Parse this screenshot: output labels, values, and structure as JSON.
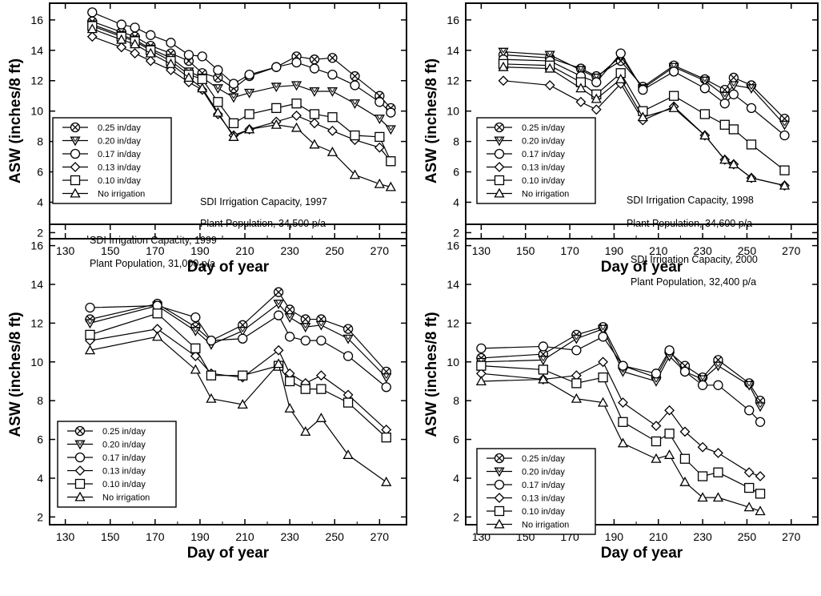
{
  "chart_data": [
    {
      "type": "line",
      "annotations": [
        "SDI Irrigation Capacity, 1997",
        "Plant Population, 34,500 p/a"
      ],
      "xlabel": "Day of year",
      "ylabel": "ASW (inches/8 ft)",
      "xlim": [
        123,
        282
      ],
      "ylim": [
        1.6,
        17.1
      ],
      "xticks": [
        130,
        150,
        170,
        190,
        210,
        230,
        250,
        270
      ],
      "yticks": [
        2,
        4,
        6,
        8,
        10,
        12,
        14,
        16
      ],
      "legend_position": "lower-left",
      "series": [
        {
          "name": "0.25 in/day",
          "marker": "circle-x",
          "x": [
            142,
            155,
            161,
            168,
            177,
            185,
            191,
            198,
            205,
            212,
            224,
            233,
            241,
            249,
            259,
            270,
            275
          ],
          "y": [
            15.9,
            15.2,
            14.9,
            14.3,
            13.8,
            13.3,
            12.5,
            12.2,
            11.5,
            12.3,
            12.9,
            13.6,
            13.4,
            13.5,
            12.3,
            11.0,
            10.2
          ]
        },
        {
          "name": "0.20 in/day",
          "marker": "triangle-down",
          "x": [
            142,
            155,
            161,
            168,
            177,
            185,
            191,
            198,
            205,
            212,
            224,
            233,
            241,
            249,
            259,
            270,
            275
          ],
          "y": [
            15.7,
            15.0,
            14.7,
            14.1,
            13.5,
            12.6,
            12.2,
            11.5,
            10.9,
            11.2,
            11.6,
            11.7,
            11.3,
            11.3,
            10.5,
            9.5,
            8.8
          ]
        },
        {
          "name": "0.17 in/day",
          "marker": "circle",
          "x": [
            142,
            155,
            161,
            168,
            177,
            185,
            191,
            198,
            205,
            212,
            224,
            233,
            241,
            249,
            259,
            270,
            275
          ],
          "y": [
            16.5,
            15.7,
            15.5,
            15.0,
            14.5,
            13.7,
            13.6,
            12.7,
            11.8,
            12.4,
            12.9,
            13.2,
            12.8,
            12.4,
            11.7,
            10.6,
            9.9
          ]
        },
        {
          "name": "0.13 in/day",
          "marker": "diamond",
          "x": [
            142,
            155,
            161,
            168,
            177,
            185,
            191,
            198,
            205,
            212,
            224,
            233,
            241,
            249,
            259,
            270,
            275
          ],
          "y": [
            14.9,
            14.2,
            13.8,
            13.3,
            12.7,
            11.9,
            11.4,
            9.8,
            8.4,
            8.8,
            9.3,
            9.7,
            9.2,
            8.7,
            8.1,
            7.6,
            6.7
          ]
        },
        {
          "name": "0.10 in/day",
          "marker": "square",
          "x": [
            142,
            155,
            161,
            168,
            177,
            185,
            191,
            198,
            205,
            212,
            224,
            233,
            241,
            249,
            259,
            270,
            275
          ],
          "y": [
            15.6,
            14.9,
            14.6,
            14.0,
            13.3,
            12.4,
            12.1,
            10.6,
            9.2,
            9.8,
            10.2,
            10.5,
            9.8,
            9.6,
            8.4,
            8.3,
            6.7
          ]
        },
        {
          "name": "No irrigation",
          "marker": "triangle-up",
          "x": [
            142,
            155,
            161,
            168,
            177,
            185,
            191,
            198,
            205,
            212,
            224,
            233,
            241,
            249,
            259,
            270,
            275
          ],
          "y": [
            15.4,
            14.7,
            14.4,
            13.8,
            13.1,
            12.2,
            11.5,
            9.9,
            8.3,
            8.8,
            9.1,
            8.9,
            7.8,
            7.3,
            5.8,
            5.2,
            5.0
          ]
        }
      ]
    },
    {
      "type": "line",
      "annotations": [
        "SDI Irrigation Capacity, 1998",
        "Plant Population, 34,600 p/a"
      ],
      "xlabel": "Day of year",
      "ylabel": "ASW (inches/8 ft)",
      "xlim": [
        123,
        282
      ],
      "ylim": [
        1.6,
        17.1
      ],
      "xticks": [
        130,
        150,
        170,
        190,
        210,
        230,
        250,
        270
      ],
      "yticks": [
        2,
        4,
        6,
        8,
        10,
        12,
        14,
        16
      ],
      "legend_position": "lower-left",
      "series": [
        {
          "name": "0.25 in/day",
          "marker": "circle-x",
          "x": [
            140,
            161,
            175,
            182,
            193,
            203,
            217,
            231,
            240,
            244,
            252,
            267
          ],
          "y": [
            13.7,
            13.5,
            12.8,
            12.3,
            13.3,
            11.6,
            13.0,
            12.1,
            11.4,
            12.2,
            11.7,
            9.5
          ]
        },
        {
          "name": "0.20 in/day",
          "marker": "triangle-down",
          "x": [
            140,
            161,
            175,
            182,
            193,
            203,
            217,
            231,
            240,
            244,
            252,
            267
          ],
          "y": [
            13.9,
            13.7,
            12.7,
            12.2,
            13.6,
            11.5,
            12.9,
            12.0,
            11.0,
            11.7,
            11.5,
            9.1
          ]
        },
        {
          "name": "0.17 in/day",
          "marker": "circle",
          "x": [
            140,
            161,
            175,
            182,
            193,
            203,
            217,
            231,
            240,
            244,
            252,
            267
          ],
          "y": [
            13.4,
            13.3,
            12.3,
            11.9,
            13.8,
            11.4,
            12.6,
            11.5,
            10.5,
            11.1,
            10.2,
            8.4
          ]
        },
        {
          "name": "0.13 in/day",
          "marker": "diamond",
          "x": [
            140,
            161,
            175,
            182,
            193,
            203,
            217,
            231,
            240,
            244,
            252,
            267
          ],
          "y": [
            12.0,
            11.7,
            10.6,
            10.1,
            11.8,
            9.4,
            10.3,
            8.4,
            6.8,
            6.5,
            5.6,
            5.1
          ]
        },
        {
          "name": "0.10 in/day",
          "marker": "square",
          "x": [
            140,
            161,
            175,
            182,
            193,
            203,
            217,
            231,
            240,
            244,
            252,
            267
          ],
          "y": [
            13.1,
            13.0,
            11.9,
            11.1,
            12.5,
            10.0,
            11.0,
            9.8,
            9.1,
            8.8,
            7.8,
            6.1
          ]
        },
        {
          "name": "No irrigation",
          "marker": "triangle-up",
          "x": [
            140,
            161,
            175,
            182,
            193,
            203,
            217,
            231,
            240,
            244,
            252,
            267
          ],
          "y": [
            12.9,
            12.8,
            11.5,
            10.8,
            12.1,
            9.6,
            10.2,
            8.4,
            6.8,
            6.5,
            5.6,
            5.1
          ]
        }
      ]
    },
    {
      "type": "line",
      "annotations": [
        "SDI Irrigation Capacity, 1999",
        "Plant Population, 31,000 p/a"
      ],
      "xlabel": "Day of year",
      "ylabel": "ASW (inches/8 ft)",
      "xlim": [
        123,
        282
      ],
      "ylim": [
        1.6,
        17.1
      ],
      "xticks": [
        130,
        150,
        170,
        190,
        210,
        230,
        250,
        270
      ],
      "yticks": [
        2,
        4,
        6,
        8,
        10,
        12,
        14,
        16
      ],
      "legend_position": "lower-left",
      "series": [
        {
          "name": "0.25 in/day",
          "marker": "circle-x",
          "x": [
            141,
            171,
            188,
            195,
            209,
            225,
            230,
            237,
            244,
            256,
            273
          ],
          "y": [
            12.2,
            13.0,
            11.8,
            11.1,
            11.9,
            13.6,
            12.7,
            12.2,
            12.2,
            11.7,
            9.5
          ]
        },
        {
          "name": "0.20 in/day",
          "marker": "triangle-down",
          "x": [
            141,
            171,
            188,
            195,
            209,
            225,
            230,
            237,
            244,
            256,
            273
          ],
          "y": [
            12.0,
            12.9,
            11.6,
            10.9,
            11.6,
            13.0,
            12.3,
            11.8,
            11.9,
            11.2,
            9.2
          ]
        },
        {
          "name": "0.17 in/day",
          "marker": "circle",
          "x": [
            141,
            171,
            188,
            195,
            209,
            225,
            230,
            237,
            244,
            256,
            273
          ],
          "y": [
            12.8,
            12.9,
            12.3,
            11.1,
            11.2,
            12.4,
            11.3,
            11.1,
            11.1,
            10.3,
            8.7
          ]
        },
        {
          "name": "0.13 in/day",
          "marker": "diamond",
          "x": [
            141,
            171,
            188,
            195,
            209,
            225,
            230,
            237,
            244,
            256,
            273
          ],
          "y": [
            11.1,
            11.7,
            10.3,
            9.4,
            9.2,
            10.6,
            9.4,
            8.9,
            9.3,
            8.3,
            6.5
          ]
        },
        {
          "name": "0.10 in/day",
          "marker": "square",
          "x": [
            141,
            171,
            188,
            195,
            209,
            225,
            230,
            237,
            244,
            256,
            273
          ],
          "y": [
            11.4,
            12.5,
            10.7,
            9.3,
            9.3,
            9.8,
            9.0,
            8.6,
            8.6,
            7.9,
            6.1
          ]
        },
        {
          "name": "No irrigation",
          "marker": "triangle-up",
          "x": [
            141,
            171,
            188,
            195,
            209,
            225,
            230,
            237,
            244,
            256,
            273
          ],
          "y": [
            10.6,
            11.3,
            9.6,
            8.1,
            7.8,
            9.9,
            7.6,
            6.4,
            7.1,
            5.2,
            3.8
          ]
        }
      ]
    },
    {
      "type": "line",
      "annotations": [
        "SDI Irrigation Capacity, 2000",
        "Plant Population, 32,400 p/a"
      ],
      "xlabel": "Day of year",
      "ylabel": "ASW (inches/8 ft)",
      "xlim": [
        123,
        282
      ],
      "ylim": [
        1.6,
        17.1
      ],
      "xticks": [
        130,
        150,
        170,
        190,
        210,
        230,
        250,
        270
      ],
      "yticks": [
        2,
        4,
        6,
        8,
        10,
        12,
        14,
        16
      ],
      "legend_position": "lower-left",
      "series": [
        {
          "name": "0.25 in/day",
          "marker": "circle-x",
          "x": [
            130,
            158,
            173,
            185,
            194,
            209,
            215,
            222,
            230,
            237,
            251,
            256
          ],
          "y": [
            10.2,
            10.4,
            11.4,
            11.8,
            9.8,
            9.2,
            10.5,
            9.8,
            9.2,
            10.1,
            8.9,
            8.0
          ]
        },
        {
          "name": "0.20 in/day",
          "marker": "triangle-down",
          "x": [
            130,
            158,
            173,
            185,
            194,
            209,
            215,
            222,
            230,
            237,
            251,
            256
          ],
          "y": [
            10.0,
            10.1,
            11.2,
            11.7,
            9.5,
            9.0,
            10.3,
            9.5,
            9.1,
            9.8,
            8.8,
            7.7
          ]
        },
        {
          "name": "0.17 in/day",
          "marker": "circle",
          "x": [
            130,
            158,
            173,
            185,
            194,
            209,
            215,
            222,
            230,
            237,
            251,
            256
          ],
          "y": [
            10.7,
            10.8,
            10.6,
            11.3,
            9.8,
            9.4,
            10.6,
            9.5,
            8.8,
            8.8,
            7.5,
            6.9
          ]
        },
        {
          "name": "0.13 in/day",
          "marker": "diamond",
          "x": [
            130,
            158,
            173,
            185,
            194,
            209,
            215,
            222,
            230,
            237,
            251,
            256
          ],
          "y": [
            9.4,
            9.1,
            9.3,
            10.0,
            7.9,
            6.7,
            7.5,
            6.4,
            5.6,
            5.3,
            4.3,
            4.1
          ]
        },
        {
          "name": "0.10 in/day",
          "marker": "square",
          "x": [
            130,
            158,
            173,
            185,
            194,
            209,
            215,
            222,
            230,
            237,
            251,
            256
          ],
          "y": [
            9.8,
            9.6,
            8.9,
            9.2,
            6.9,
            5.9,
            6.3,
            5.0,
            4.1,
            4.3,
            3.5,
            3.2
          ]
        },
        {
          "name": "No irrigation",
          "marker": "triangle-up",
          "x": [
            130,
            158,
            173,
            185,
            194,
            209,
            215,
            222,
            230,
            237,
            251,
            256
          ],
          "y": [
            9.0,
            9.1,
            8.1,
            7.9,
            5.8,
            5.0,
            5.2,
            3.8,
            3.0,
            3.0,
            2.5,
            2.3
          ]
        }
      ]
    }
  ]
}
